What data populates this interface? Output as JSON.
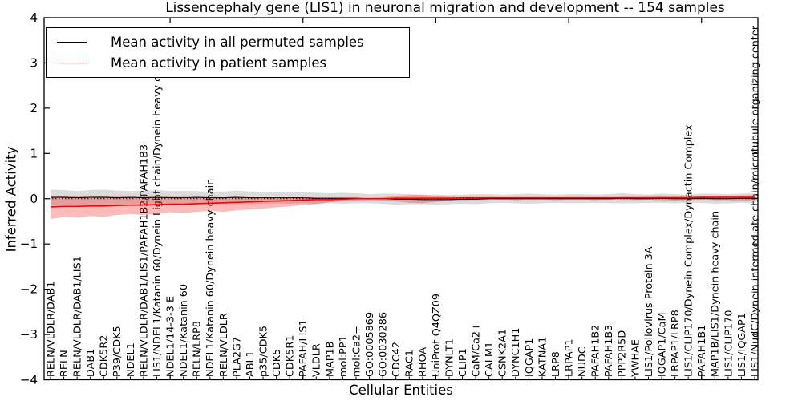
{
  "figure": {
    "title": "Lissencephaly gene (LIS1) in neuronal migration and development -- 154 samples",
    "xlabel": "Cellular Entities",
    "ylabel": "Inferred Activity"
  },
  "legend": {
    "items": [
      {
        "label": "Mean activity in all permuted samples",
        "color": "#000000"
      },
      {
        "label": "Mean activity in patient samples",
        "color": "#ff0000"
      }
    ]
  },
  "chart_data": {
    "type": "line",
    "title": "Lissencephaly gene (LIS1) in neuronal migration and development -- 154 samples",
    "xlabel": "Cellular Entities",
    "ylabel": "Inferred Activity",
    "ylim": [
      -4,
      4
    ],
    "yticks": [
      -4,
      -3,
      -2,
      -1,
      0,
      1,
      2,
      3,
      4
    ],
    "xtick_indices": [
      9,
      19,
      29,
      39,
      49
    ],
    "grid": false,
    "legend_position": "upper left",
    "zero_line": "dotted-black",
    "colors": {
      "permuted": "#000000",
      "patient": "#ff0000",
      "permuted_band": "#7f7f7f",
      "patient_band": "#ff0000"
    },
    "categories": [
      "RELN/VLDLR/DAB1",
      "RELN",
      "RELN/VLDLR/DAB1/LIS1",
      "DAB1",
      "CDK5R2",
      "P39/CDK5",
      "NDEL1",
      "RELN/VLDLR/DAB1/LIS1/PAFAH1B2/PAFAH1B3",
      "LIS1/NDEL1/Katanin 60/Dynein Light chain/Dynein heavy chain",
      "NDEL1/14-3-3 E",
      "NDEL1/Katanin 60",
      "RELN/LRP8",
      "NDEL1/Katanin 60/Dynein heavy chain",
      "RELN/VLDLR",
      "PLA2G7",
      "ABL1",
      "p35/CDK5",
      "CDK5",
      "CDK5R1",
      "PAFAH/LIS1",
      "VLDLR",
      "MAP1B",
      "mol:PP1",
      "mol:Ca2+",
      "GO:0005869",
      "GO:0030286",
      "CDC42",
      "RAC1",
      "RHOA",
      "UniProt:Q4QZ09",
      "DYNLT1",
      "CLIP1",
      "CaM/Ca2+",
      "CALM1",
      "CSNK2A1",
      "DYNC1H1",
      "IQGAP1",
      "KATNA1",
      "LRP8",
      "LRPAP1",
      "NUDC",
      "PAFAH1B2",
      "PAFAH1B3",
      "PPP2R5D",
      "YWHAE",
      "LIS1/Poliovirus Protein 3A",
      "IQGAP1/CaM",
      "LRPAP1/LRP8",
      "LIS1/CLIP170/Dynein Complex/Dynactin Complex",
      "PAFAH1B1",
      "MAP1B/LIS1/Dynein heavy chain",
      "LIS1/CLIP170",
      "LIS1/IQGAP1",
      "LIS1/NudC/Dynein intermediate chain/microtubule organizing center"
    ],
    "series": [
      {
        "name": "Mean activity in all permuted samples",
        "color": "#000000",
        "style": "solid",
        "values": [
          0.03,
          0.03,
          0.02,
          0.03,
          0.03,
          0.02,
          0.03,
          0.02,
          0.03,
          0.02,
          0.02,
          0.03,
          0.02,
          0.02,
          0.03,
          0.02,
          0.02,
          0.02,
          0.02,
          0.02,
          0.01,
          0.01,
          0.01,
          0.01,
          0.0,
          0.0,
          -0.01,
          -0.01,
          -0.02,
          -0.02,
          -0.02,
          -0.01,
          -0.01,
          0.0,
          0.0,
          0.0,
          0.0,
          0.0,
          0.0,
          0.0,
          0.0,
          0.0,
          0.0,
          0.01,
          0.0,
          0.0,
          0.01,
          0.0,
          0.0,
          0.01,
          0.0,
          0.0,
          0.01,
          0.01
        ]
      },
      {
        "name": "Mean activity in patient samples",
        "color": "#ff0000",
        "style": "solid",
        "values": [
          -0.18,
          -0.17,
          -0.17,
          -0.16,
          -0.16,
          -0.15,
          -0.14,
          -0.14,
          -0.13,
          -0.12,
          -0.12,
          -0.11,
          -0.1,
          -0.09,
          -0.08,
          -0.07,
          -0.06,
          -0.05,
          -0.04,
          -0.03,
          -0.02,
          -0.02,
          -0.01,
          0.0,
          0.0,
          0.0,
          0.01,
          0.01,
          0.01,
          0.01,
          0.01,
          0.02,
          0.02,
          0.02,
          0.02,
          0.02,
          0.02,
          0.02,
          0.02,
          0.02,
          0.02,
          0.02,
          0.02,
          0.02,
          0.02,
          0.02,
          0.02,
          0.02,
          0.02,
          0.03,
          0.03,
          0.03,
          0.03,
          0.03
        ]
      }
    ],
    "bands": [
      {
        "name": "permuted-std-band",
        "color": "#7f7f7f",
        "opacity": 0.28,
        "lower": [
          -0.14,
          -0.13,
          -0.13,
          -0.13,
          -0.14,
          -0.14,
          -0.11,
          -0.13,
          -0.13,
          -0.13,
          -0.13,
          -0.11,
          -0.11,
          -0.12,
          -0.12,
          -0.12,
          -0.11,
          -0.1,
          -0.11,
          -0.1,
          -0.11,
          -0.1,
          -0.11,
          -0.1,
          -0.1,
          -0.11,
          -0.13,
          -0.12,
          -0.12,
          -0.13,
          -0.12,
          -0.11,
          -0.12,
          -0.1,
          -0.09,
          -0.1,
          -0.11,
          -0.1,
          -0.09,
          -0.1,
          -0.1,
          -0.09,
          -0.1,
          -0.1,
          -0.1,
          -0.09,
          -0.09,
          -0.1,
          -0.09,
          -0.09,
          -0.11,
          -0.1,
          -0.09,
          -0.1
        ],
        "upper": [
          0.2,
          0.19,
          0.17,
          0.19,
          0.2,
          0.18,
          0.17,
          0.17,
          0.19,
          0.17,
          0.17,
          0.17,
          0.15,
          0.16,
          0.18,
          0.16,
          0.15,
          0.14,
          0.15,
          0.14,
          0.13,
          0.12,
          0.13,
          0.12,
          0.1,
          0.11,
          0.11,
          0.1,
          0.08,
          0.09,
          0.08,
          0.09,
          0.1,
          0.1,
          0.09,
          0.1,
          0.11,
          0.1,
          0.09,
          0.1,
          0.1,
          0.09,
          0.1,
          0.12,
          0.1,
          0.09,
          0.11,
          0.1,
          0.09,
          0.11,
          0.11,
          0.1,
          0.11,
          0.12
        ]
      },
      {
        "name": "patient-std-band",
        "color": "#ff0000",
        "opacity": 0.27,
        "lower": [
          -0.45,
          -0.4,
          -0.42,
          -0.38,
          -0.4,
          -0.36,
          -0.34,
          -0.36,
          -0.33,
          -0.3,
          -0.32,
          -0.29,
          -0.27,
          -0.29,
          -0.26,
          -0.24,
          -0.22,
          -0.19,
          -0.17,
          -0.14,
          -0.12,
          -0.08,
          -0.05,
          -0.04,
          -0.03,
          -0.04,
          -0.06,
          -0.09,
          -0.1,
          -0.07,
          -0.04,
          -0.03,
          -0.03,
          -0.02,
          -0.02,
          -0.03,
          -0.02,
          -0.02,
          -0.03,
          -0.02,
          -0.02,
          -0.03,
          -0.02,
          -0.02,
          -0.03,
          -0.02,
          -0.03,
          -0.04,
          -0.03,
          -0.02,
          -0.03,
          -0.03,
          -0.04,
          -0.04
        ],
        "upper": [
          0.07,
          0.05,
          0.06,
          0.04,
          0.06,
          0.05,
          0.04,
          0.05,
          0.04,
          0.05,
          0.04,
          0.03,
          0.04,
          0.03,
          0.04,
          0.03,
          0.03,
          0.02,
          0.03,
          0.02,
          0.02,
          0.02,
          0.02,
          0.02,
          0.02,
          0.03,
          0.05,
          0.08,
          0.09,
          0.06,
          0.04,
          0.03,
          0.03,
          0.03,
          0.03,
          0.03,
          0.03,
          0.03,
          0.03,
          0.03,
          0.03,
          0.03,
          0.03,
          0.04,
          0.04,
          0.04,
          0.05,
          0.06,
          0.05,
          0.05,
          0.06,
          0.06,
          0.07,
          0.08
        ]
      }
    ]
  }
}
